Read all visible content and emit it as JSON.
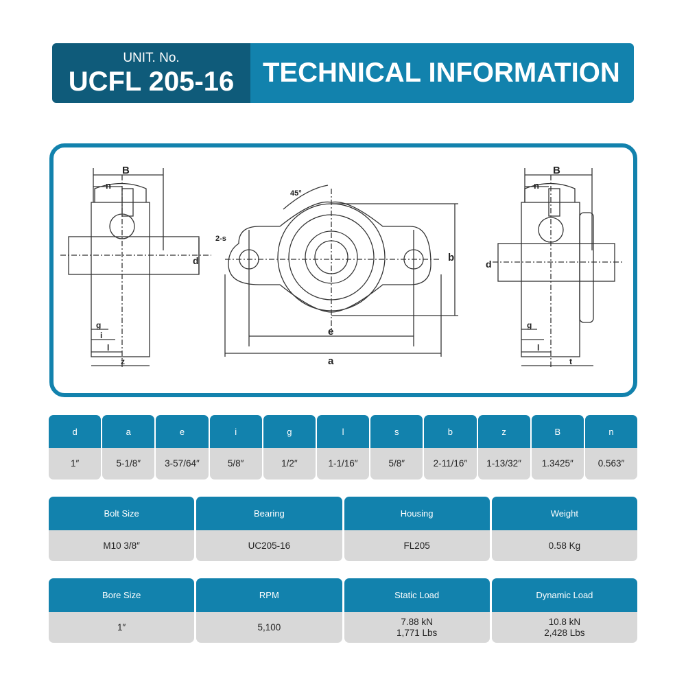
{
  "header": {
    "unit_label": "UNIT. No.",
    "unit_number": "UCFL 205-16",
    "title": "TECHNICAL INFORMATION"
  },
  "colors": {
    "dark_blue": "#0f5b7a",
    "blue": "#1282ad",
    "cell_gray": "#d8d8d8"
  },
  "drawing": {
    "left_view": {
      "B": "B",
      "n": "n",
      "d": "d",
      "g": "g",
      "i": "i",
      "l": "l",
      "z": "z"
    },
    "front_view": {
      "angle": "45°",
      "holes": "2-s",
      "b": "b",
      "e": "e",
      "a": "a"
    },
    "right_view": {
      "B": "B",
      "n": "n",
      "d": "d",
      "g": "g",
      "l": "l",
      "t": "t"
    }
  },
  "dimensions": [
    {
      "label": "d",
      "value": "1″"
    },
    {
      "label": "a",
      "value": "5-1/8″"
    },
    {
      "label": "e",
      "value": "3-57/64″"
    },
    {
      "label": "i",
      "value": "5/8″"
    },
    {
      "label": "g",
      "value": "1/2″"
    },
    {
      "label": "l",
      "value": "1-1/16″"
    },
    {
      "label": "s",
      "value": "5/8″"
    },
    {
      "label": "b",
      "value": "2-11/16″"
    },
    {
      "label": "z",
      "value": "1-13/32″"
    },
    {
      "label": "B",
      "value": "1.3425″"
    },
    {
      "label": "n",
      "value": "0.563″"
    }
  ],
  "specs1": [
    {
      "label": "Bolt Size",
      "value": "M10 3/8″"
    },
    {
      "label": "Bearing",
      "value": "UC205-16"
    },
    {
      "label": "Housing",
      "value": "FL205"
    },
    {
      "label": "Weight",
      "value": "0.58 Kg"
    }
  ],
  "specs2": [
    {
      "label": "Bore Size",
      "lines": [
        "1″"
      ]
    },
    {
      "label": "RPM",
      "lines": [
        "5,100"
      ]
    },
    {
      "label": "Static Load",
      "lines": [
        "7.88 kN",
        "1,771 Lbs"
      ]
    },
    {
      "label": "Dynamic Load",
      "lines": [
        "10.8 kN",
        "2,428 Lbs"
      ]
    }
  ]
}
